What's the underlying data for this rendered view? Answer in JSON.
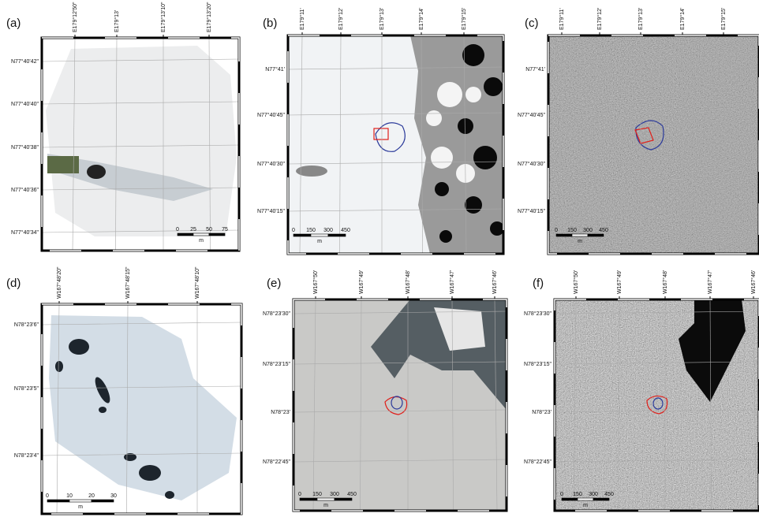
{
  "panels": [
    {
      "label": "(a)",
      "top_labels": [
        "E179°12'50\"",
        "E179°13'",
        "E179°13'10\"",
        "E179°13'20\""
      ],
      "left_labels": [
        "N77°40'42\"",
        "N77°40'40\"",
        "N77°40'38\"",
        "N77°40'36\"",
        "N77°40'34\""
      ],
      "scale_labels": [
        "0",
        "25",
        "50",
        "75"
      ],
      "scale_unit": "m"
    },
    {
      "label": "(b)",
      "top_labels": [
        "E179°11'",
        "E179°12'",
        "E179°13'",
        "E179°14'",
        "E179°15'"
      ],
      "left_labels": [
        "N77°41'",
        "N77°40'45\"",
        "N77°40'30\"",
        "N77°40'15\""
      ],
      "scale_labels": [
        "0",
        "150",
        "300",
        "450"
      ],
      "scale_unit": "m"
    },
    {
      "label": "(c)",
      "top_labels": [
        "E179°11'",
        "E179°12'",
        "E179°13'",
        "E179°14'",
        "E179°15'"
      ],
      "left_labels": [
        "N77°41'",
        "N77°40'45\"",
        "N77°40'30\"",
        "N77°40'15\""
      ],
      "scale_labels": [
        "0",
        "150",
        "300",
        "450"
      ],
      "scale_unit": "m"
    },
    {
      "label": "(d)",
      "top_labels": [
        "W167°48'20\"",
        "W167°48'15\"",
        "W167°48'10\""
      ],
      "left_labels": [
        "N78°23'6\"",
        "N78°23'5\"",
        "N78°23'4\""
      ],
      "scale_labels": [
        "0",
        "10",
        "20",
        "30"
      ],
      "scale_unit": "m"
    },
    {
      "label": "(e)",
      "top_labels": [
        "W167°50'",
        "W167°49'",
        "W167°48'",
        "W167°47'",
        "W167°46'"
      ],
      "left_labels": [
        "N78°23'30\"",
        "N78°23'15\"",
        "N78°23'",
        "N78°22'45\""
      ],
      "scale_labels": [
        "0",
        "150",
        "300",
        "450"
      ],
      "scale_unit": "m"
    },
    {
      "label": "(f)",
      "top_labels": [
        "W167°50'",
        "W167°49'",
        "W167°48'",
        "W167°47'",
        "W167°46'"
      ],
      "left_labels": [
        "N78°23'30\"",
        "N78°23'15\"",
        "N78°23'",
        "N78°22'45\""
      ],
      "scale_labels": [
        "0",
        "150",
        "300",
        "450"
      ],
      "scale_unit": "m"
    }
  ]
}
